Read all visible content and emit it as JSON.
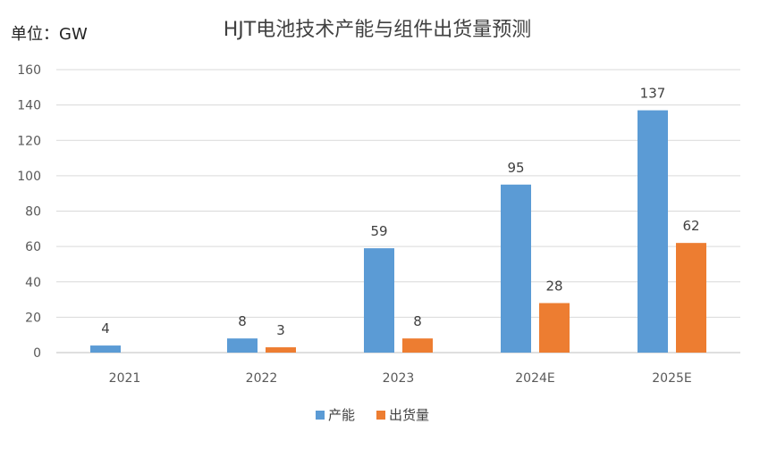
{
  "chart_data": {
    "type": "bar",
    "title": "HJT电池技术产能与组件出货量预测",
    "unit_label": "单位：GW",
    "categories": [
      "2021",
      "2022",
      "2023",
      "2024E",
      "2025E"
    ],
    "series": [
      {
        "name": "产能",
        "color": "#5b9bd5",
        "values": [
          4,
          8,
          59,
          95,
          137
        ]
      },
      {
        "name": "出货量",
        "color": "#ed7d31",
        "values": [
          null,
          3,
          8,
          28,
          62
        ]
      }
    ],
    "ylim": [
      0,
      160
    ],
    "yticks": [
      0,
      20,
      40,
      60,
      80,
      100,
      120,
      140,
      160
    ],
    "grid": true,
    "legend_position": "bottom"
  }
}
